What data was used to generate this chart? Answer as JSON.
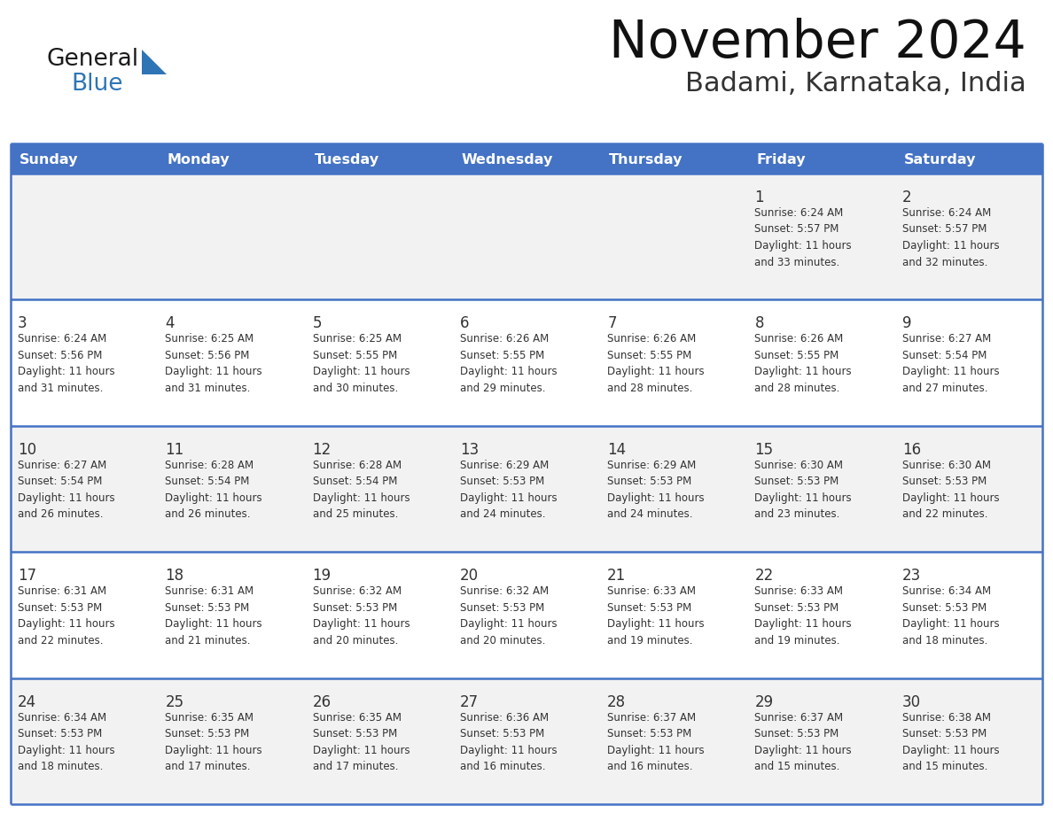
{
  "title": "November 2024",
  "subtitle": "Badami, Karnataka, India",
  "days_of_week": [
    "Sunday",
    "Monday",
    "Tuesday",
    "Wednesday",
    "Thursday",
    "Friday",
    "Saturday"
  ],
  "header_bg": "#4472C4",
  "header_text_color": "#FFFFFF",
  "row_bg_even": "#F2F2F2",
  "row_bg_odd": "#FFFFFF",
  "separator_color": "#4472C4",
  "cell_text_color": "#333333",
  "calendar_data": [
    [
      null,
      null,
      null,
      null,
      null,
      {
        "day": "1",
        "sunrise": "6:24 AM",
        "sunset": "5:57 PM",
        "daylight": "11 hours\nand 33 minutes."
      },
      {
        "day": "2",
        "sunrise": "6:24 AM",
        "sunset": "5:57 PM",
        "daylight": "11 hours\nand 32 minutes."
      }
    ],
    [
      {
        "day": "3",
        "sunrise": "6:24 AM",
        "sunset": "5:56 PM",
        "daylight": "11 hours\nand 31 minutes."
      },
      {
        "day": "4",
        "sunrise": "6:25 AM",
        "sunset": "5:56 PM",
        "daylight": "11 hours\nand 31 minutes."
      },
      {
        "day": "5",
        "sunrise": "6:25 AM",
        "sunset": "5:55 PM",
        "daylight": "11 hours\nand 30 minutes."
      },
      {
        "day": "6",
        "sunrise": "6:26 AM",
        "sunset": "5:55 PM",
        "daylight": "11 hours\nand 29 minutes."
      },
      {
        "day": "7",
        "sunrise": "6:26 AM",
        "sunset": "5:55 PM",
        "daylight": "11 hours\nand 28 minutes."
      },
      {
        "day": "8",
        "sunrise": "6:26 AM",
        "sunset": "5:55 PM",
        "daylight": "11 hours\nand 28 minutes."
      },
      {
        "day": "9",
        "sunrise": "6:27 AM",
        "sunset": "5:54 PM",
        "daylight": "11 hours\nand 27 minutes."
      }
    ],
    [
      {
        "day": "10",
        "sunrise": "6:27 AM",
        "sunset": "5:54 PM",
        "daylight": "11 hours\nand 26 minutes."
      },
      {
        "day": "11",
        "sunrise": "6:28 AM",
        "sunset": "5:54 PM",
        "daylight": "11 hours\nand 26 minutes."
      },
      {
        "day": "12",
        "sunrise": "6:28 AM",
        "sunset": "5:54 PM",
        "daylight": "11 hours\nand 25 minutes."
      },
      {
        "day": "13",
        "sunrise": "6:29 AM",
        "sunset": "5:53 PM",
        "daylight": "11 hours\nand 24 minutes."
      },
      {
        "day": "14",
        "sunrise": "6:29 AM",
        "sunset": "5:53 PM",
        "daylight": "11 hours\nand 24 minutes."
      },
      {
        "day": "15",
        "sunrise": "6:30 AM",
        "sunset": "5:53 PM",
        "daylight": "11 hours\nand 23 minutes."
      },
      {
        "day": "16",
        "sunrise": "6:30 AM",
        "sunset": "5:53 PM",
        "daylight": "11 hours\nand 22 minutes."
      }
    ],
    [
      {
        "day": "17",
        "sunrise": "6:31 AM",
        "sunset": "5:53 PM",
        "daylight": "11 hours\nand 22 minutes."
      },
      {
        "day": "18",
        "sunrise": "6:31 AM",
        "sunset": "5:53 PM",
        "daylight": "11 hours\nand 21 minutes."
      },
      {
        "day": "19",
        "sunrise": "6:32 AM",
        "sunset": "5:53 PM",
        "daylight": "11 hours\nand 20 minutes."
      },
      {
        "day": "20",
        "sunrise": "6:32 AM",
        "sunset": "5:53 PM",
        "daylight": "11 hours\nand 20 minutes."
      },
      {
        "day": "21",
        "sunrise": "6:33 AM",
        "sunset": "5:53 PM",
        "daylight": "11 hours\nand 19 minutes."
      },
      {
        "day": "22",
        "sunrise": "6:33 AM",
        "sunset": "5:53 PM",
        "daylight": "11 hours\nand 19 minutes."
      },
      {
        "day": "23",
        "sunrise": "6:34 AM",
        "sunset": "5:53 PM",
        "daylight": "11 hours\nand 18 minutes."
      }
    ],
    [
      {
        "day": "24",
        "sunrise": "6:34 AM",
        "sunset": "5:53 PM",
        "daylight": "11 hours\nand 18 minutes."
      },
      {
        "day": "25",
        "sunrise": "6:35 AM",
        "sunset": "5:53 PM",
        "daylight": "11 hours\nand 17 minutes."
      },
      {
        "day": "26",
        "sunrise": "6:35 AM",
        "sunset": "5:53 PM",
        "daylight": "11 hours\nand 17 minutes."
      },
      {
        "day": "27",
        "sunrise": "6:36 AM",
        "sunset": "5:53 PM",
        "daylight": "11 hours\nand 16 minutes."
      },
      {
        "day": "28",
        "sunrise": "6:37 AM",
        "sunset": "5:53 PM",
        "daylight": "11 hours\nand 16 minutes."
      },
      {
        "day": "29",
        "sunrise": "6:37 AM",
        "sunset": "5:53 PM",
        "daylight": "11 hours\nand 15 minutes."
      },
      {
        "day": "30",
        "sunrise": "6:38 AM",
        "sunset": "5:53 PM",
        "daylight": "11 hours\nand 15 minutes."
      }
    ]
  ],
  "logo_general_color": "#1a1a1a",
  "logo_blue_color": "#2E75B6",
  "logo_triangle_color": "#2E75B6"
}
